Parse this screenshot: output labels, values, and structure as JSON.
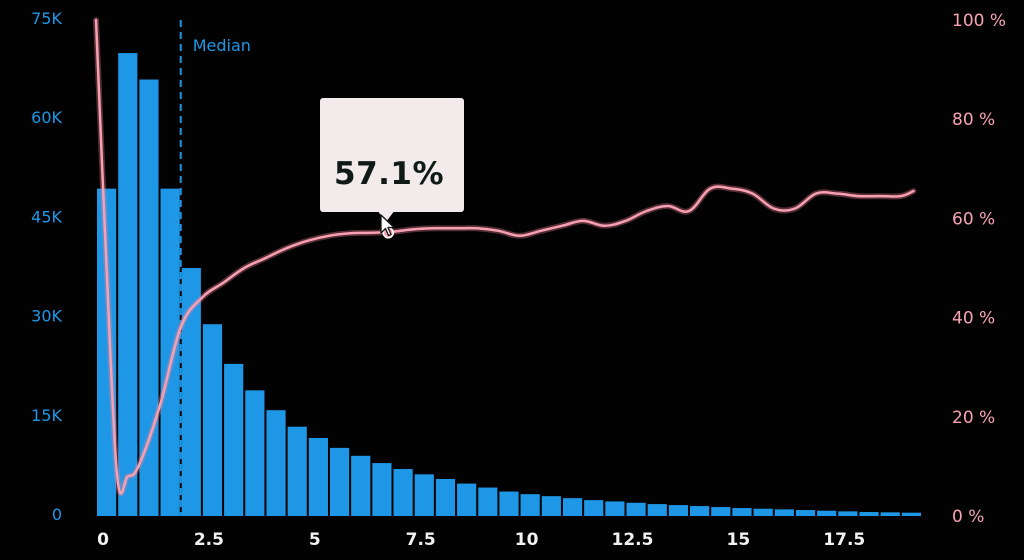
{
  "colors": {
    "background": "#020203",
    "bars": "#1e98e6",
    "line": "#f07f95",
    "left_axis": "#1e98e6",
    "right_axis": "#f7a3b4",
    "x_axis": "#f2f2f2",
    "tooltip_bg": "#f3eaec",
    "tooltip_text": "#0f1a17"
  },
  "tooltip": {
    "value": "57.1%",
    "anchor_x": 6.9,
    "anchor_pct": 57.1
  },
  "chart_data": {
    "type": "bar",
    "title": "",
    "xlabel": "",
    "ylabel": "",
    "x_ticks": [
      "0",
      "2.5",
      "5",
      "7.5",
      "10",
      "12.5",
      "15",
      "17.5"
    ],
    "y_left_ticks": [
      "0",
      "15K",
      "30K",
      "45K",
      "60K",
      "75K"
    ],
    "y_right_ticks": [
      "0 %",
      "20 %",
      "40 %",
      "60 %",
      "80 %",
      "100 %"
    ],
    "xlim": [
      0,
      19.5
    ],
    "ylim_left": [
      0,
      75000
    ],
    "ylim_right": [
      0,
      100
    ],
    "grid": false,
    "legend": "none",
    "bar_width": 0.5,
    "bars": {
      "x": [
        0,
        0.5,
        1,
        1.5,
        2,
        2.5,
        3,
        3.5,
        4,
        4.5,
        5,
        5.5,
        6,
        6.5,
        7,
        7.5,
        8,
        8.5,
        9,
        9.5,
        10,
        10.5,
        11,
        11.5,
        12,
        12.5,
        13,
        13.5,
        14,
        14.5,
        15,
        15.5,
        16,
        16.5,
        17,
        17.5,
        18,
        18.5,
        19
      ],
      "values": [
        49500,
        70000,
        66000,
        49500,
        37500,
        29000,
        23000,
        19000,
        16000,
        13500,
        11800,
        10300,
        9100,
        8000,
        7100,
        6300,
        5600,
        4900,
        4300,
        3700,
        3300,
        3000,
        2700,
        2400,
        2200,
        2000,
        1800,
        1650,
        1500,
        1350,
        1200,
        1100,
        1000,
        900,
        800,
        700,
        600,
        550,
        500
      ]
    },
    "median": {
      "label": "Median",
      "x": 2.0
    },
    "line": {
      "axis": "right",
      "x": [
        0,
        0.25,
        0.5,
        0.75,
        1,
        1.5,
        2,
        2.5,
        3,
        3.5,
        4,
        4.5,
        5,
        5.5,
        6,
        6.5,
        7,
        7.5,
        8,
        8.5,
        9,
        9.5,
        10,
        10.5,
        11,
        11.5,
        12,
        12.5,
        13,
        13.5,
        14,
        14.5,
        15,
        15.5,
        16,
        16.5,
        17,
        17.5,
        18,
        18.5,
        19,
        19.3
      ],
      "values": [
        100,
        50,
        8,
        8,
        10,
        22,
        38,
        44,
        47,
        50,
        52,
        54,
        55.5,
        56.5,
        57,
        57.1,
        57.3,
        57.8,
        58,
        58,
        58,
        57.5,
        56.5,
        57.5,
        58.5,
        59.5,
        58.5,
        59.5,
        61.5,
        62.5,
        61.5,
        66,
        66,
        65,
        62,
        62,
        65,
        65,
        64.5,
        64.5,
        64.5,
        65.5
      ]
    }
  }
}
